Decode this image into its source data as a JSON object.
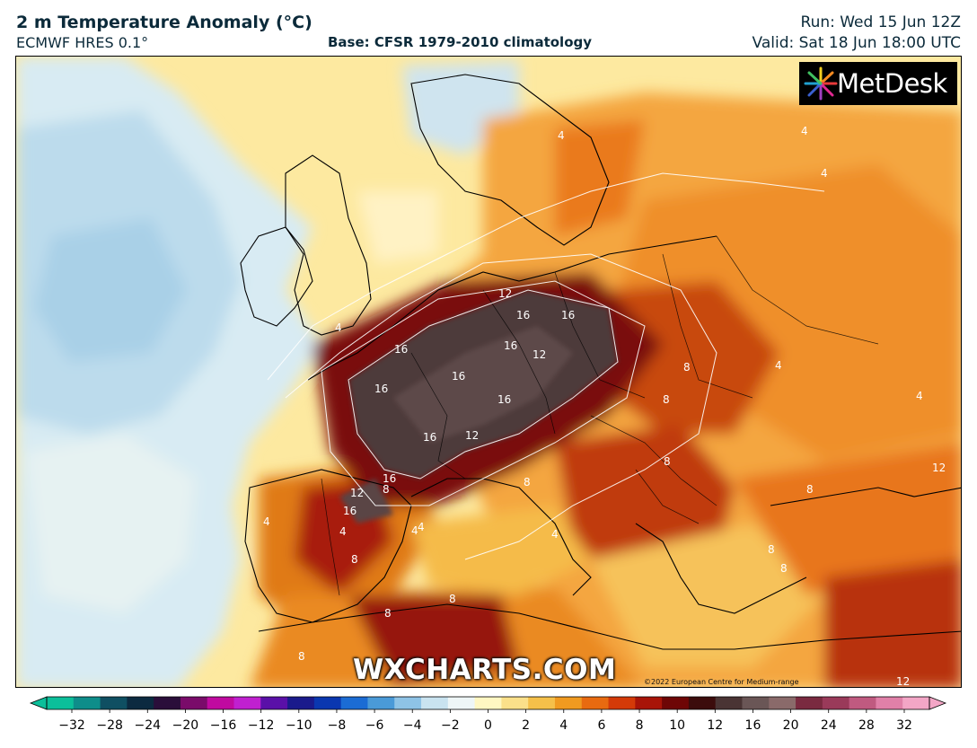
{
  "header": {
    "title": "2 m Temperature Anomaly (°C)",
    "model": "ECMWF HRES 0.1°",
    "base": "Base: CFSR 1979-2010 climatology",
    "run": "Run: Wed 15 Jun 12Z",
    "valid": "Valid: Sat 18 Jun 18:00 UTC"
  },
  "logo": {
    "text": "MetDesk",
    "icon": "metdesk-burst-icon"
  },
  "watermark": "WXCHARTS.COM",
  "copyright": "©2022 European Centre for Medium-range",
  "contour_labels": {
    "l1": "12",
    "l2": "16",
    "l3": "16",
    "l4": "16",
    "l5": "16",
    "l6": "12",
    "l7": "16",
    "l8": "16",
    "l9": "16",
    "l10": "12",
    "l11": "16",
    "l12": "16",
    "l13": "12",
    "l14": "16",
    "l15": "4",
    "l16": "4",
    "l17": "8",
    "l18": "8",
    "l19": "4",
    "l20": "4",
    "l21": "8",
    "l22": "8",
    "l23": "4",
    "l24": "4",
    "l25": "8",
    "l26": "8",
    "l27": "4",
    "l28": "8",
    "l29": "8",
    "l30": "4",
    "l31": "4",
    "l32": "8",
    "l33": "8",
    "l34": "12",
    "l35": "4",
    "l36": "8",
    "l37": "8",
    "l38": "4",
    "l39": "12"
  },
  "colorbar": {
    "ticks": [
      "−32",
      "−28",
      "−24",
      "−20",
      "−16",
      "−12",
      "−10",
      "−8",
      "−6",
      "−4",
      "−2",
      "0",
      "2",
      "4",
      "6",
      "8",
      "10",
      "12",
      "16",
      "20",
      "24",
      "28",
      "32"
    ],
    "colors": [
      "#0bbf9a",
      "#0e8d8a",
      "#0f4f62",
      "#0c2a40",
      "#2a0e3a",
      "#7a0b6a",
      "#c00aa0",
      "#c020d0",
      "#5a10a8",
      "#1a1a8c",
      "#0a37b0",
      "#1b6cd4",
      "#4a9ad8",
      "#8ec3e6",
      "#c9e3f0",
      "#eef6f7",
      "#fff7c2",
      "#fbe08a",
      "#f5c04a",
      "#f09a20",
      "#e86a10",
      "#d43a08",
      "#a81408",
      "#6e0606",
      "#3c0c0c",
      "#4a3434",
      "#6a5656",
      "#8a6a6a",
      "#7a2a40",
      "#9a3a5a",
      "#c05a80",
      "#e080a8",
      "#f3a6c6"
    ]
  }
}
